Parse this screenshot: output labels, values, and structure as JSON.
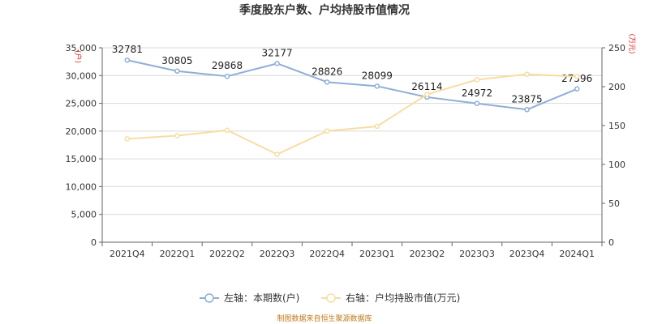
{
  "chart_data": {
    "type": "line",
    "title": "季度股东户数、户均持股市值情况",
    "categories": [
      "2021Q4",
      "2022Q1",
      "2022Q2",
      "2022Q3",
      "2022Q4",
      "2023Q1",
      "2023Q2",
      "2023Q3",
      "2023Q4",
      "2024Q1"
    ],
    "left_axis": {
      "unit": "(户)",
      "ylim": [
        0,
        35000
      ],
      "ticks": [
        "0",
        "5,000",
        "10,000",
        "15,000",
        "20,000",
        "25,000",
        "30,000",
        "35,000"
      ]
    },
    "right_axis": {
      "unit": "(万元)",
      "ylim": [
        0,
        250
      ],
      "ticks": [
        "0",
        "50",
        "100",
        "150",
        "200",
        "250"
      ]
    },
    "series": [
      {
        "name": "左轴：本期数(户)",
        "axis": "left",
        "color": "#8eaed8",
        "values": [
          32781,
          30805,
          29868,
          32177,
          28826,
          28099,
          26114,
          24972,
          23875,
          27596
        ],
        "labels": [
          "32781",
          "30805",
          "29868",
          "32177",
          "28826",
          "28099",
          "26114",
          "24972",
          "23875",
          "27596"
        ]
      },
      {
        "name": "右轴：户均持股市值(万元)",
        "axis": "right",
        "color": "#f8dda2",
        "values": [
          133,
          137,
          144,
          113,
          143,
          149,
          190,
          209,
          216,
          213
        ]
      }
    ],
    "grid": true,
    "legend_position": "bottom"
  },
  "footer": {
    "source": "制图数据来自恒生聚源数据库"
  }
}
